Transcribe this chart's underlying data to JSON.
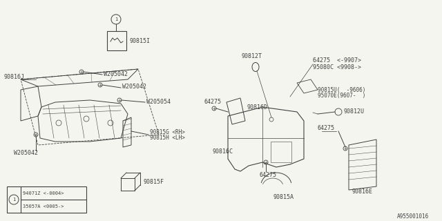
{
  "bg_color": "#f5f5f0",
  "line_color": "#404040",
  "watermark": "A955001016",
  "legend_line1": "94071Z <-0004>",
  "legend_line2": "35057A <0005->"
}
